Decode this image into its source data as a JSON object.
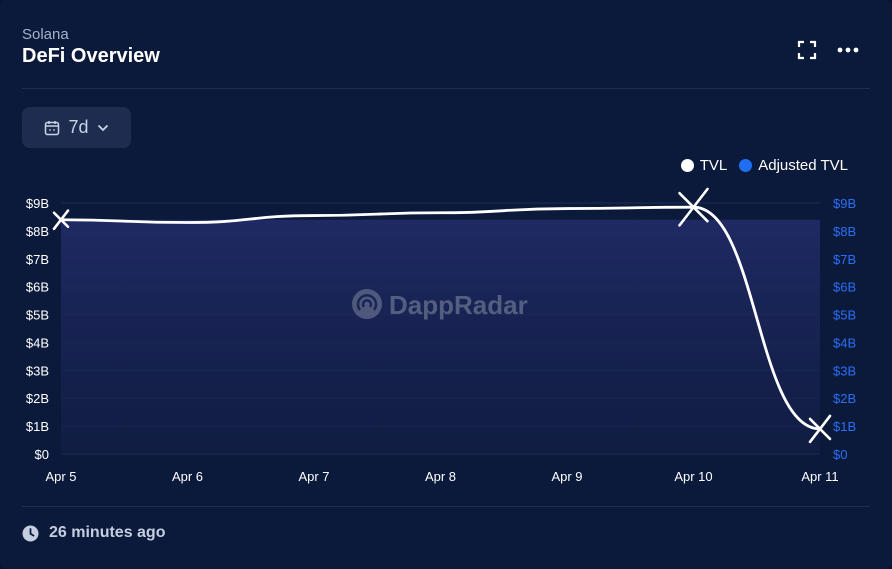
{
  "header": {
    "network": "Solana",
    "title": "DeFi Overview"
  },
  "controls": {
    "range_label": "7d"
  },
  "legend": [
    {
      "label": "TVL",
      "color": "#ffffff"
    },
    {
      "label": "Adjusted TVL",
      "color": "#1f6ff2"
    }
  ],
  "watermark": "DappRadar",
  "footer": {
    "updated": "26 minutes ago"
  },
  "colors": {
    "background": "#0b1a3a",
    "grid": "#1f2d52",
    "left_axis_text": "#ffffff",
    "right_axis_text": "#2a6ff5",
    "area_fill": "#1a2456",
    "tvl_line": "#ffffff"
  },
  "chart_data": {
    "type": "area",
    "x": [
      "Apr 5",
      "Apr 6",
      "Apr 7",
      "Apr 8",
      "Apr 9",
      "Apr 10",
      "Apr 11"
    ],
    "y_ticks_left": [
      "$0",
      "$1B",
      "$2B",
      "$3B",
      "$4B",
      "$5B",
      "$6B",
      "$7B",
      "$8B",
      "$9B"
    ],
    "y_ticks_right": [
      "$0",
      "$1B",
      "$2B",
      "$3B",
      "$4B",
      "$5B",
      "$6B",
      "$7B",
      "$8B",
      "$9B"
    ],
    "ylim": [
      0,
      9
    ],
    "y_unit": "B USD",
    "series": [
      {
        "name": "Adjusted TVL",
        "style": "area",
        "values": [
          8.4,
          8.4,
          8.4,
          8.4,
          8.4,
          8.4,
          8.4
        ]
      },
      {
        "name": "TVL",
        "style": "line",
        "values": [
          8.4,
          8.3,
          8.55,
          8.65,
          8.8,
          8.85,
          0.9
        ]
      }
    ]
  }
}
